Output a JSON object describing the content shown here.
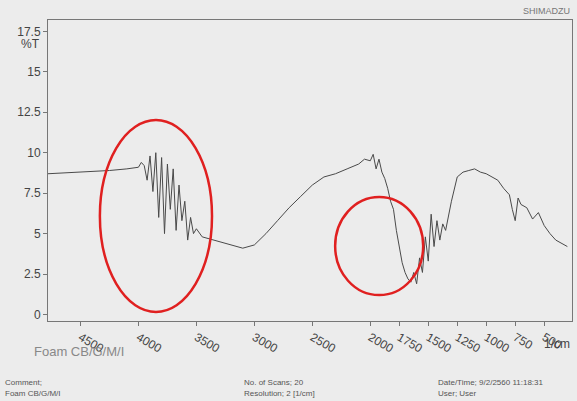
{
  "chart_data": {
    "type": "line",
    "y_label": "%T",
    "x_label": "1/cm",
    "annotations": [
      "SHIMADZU",
      "Foam CB/G/M/I"
    ],
    "color": "#4a4a4a",
    "grid": false,
    "xlim": [
      4780,
      260
    ],
    "xticks": [
      4500,
      4000,
      3500,
      3000,
      2500,
      2000,
      1750,
      1500,
      1250,
      1000,
      750,
      500
    ],
    "ylim": [
      -0.4,
      18.2
    ],
    "yticks": [
      0,
      2.5,
      5,
      7.5,
      10,
      12.5,
      15,
      17.5
    ],
    "x": [
      4780,
      4500,
      4250,
      4100,
      4000,
      3975,
      3950,
      3925,
      3900,
      3875,
      3850,
      3825,
      3800,
      3775,
      3750,
      3725,
      3700,
      3675,
      3650,
      3625,
      3600,
      3575,
      3550,
      3525,
      3500,
      3450,
      3400,
      3300,
      3200,
      3100,
      3000,
      2900,
      2800,
      2700,
      2600,
      2500,
      2400,
      2300,
      2200,
      2100,
      2050,
      2000,
      1975,
      1950,
      1925,
      1900,
      1875,
      1850,
      1825,
      1800,
      1775,
      1750,
      1725,
      1700,
      1675,
      1650,
      1625,
      1600,
      1575,
      1550,
      1525,
      1500,
      1475,
      1450,
      1425,
      1400,
      1375,
      1350,
      1325,
      1300,
      1250,
      1200,
      1150,
      1100,
      1050,
      1000,
      950,
      900,
      850,
      800,
      775,
      750,
      725,
      700,
      650,
      600,
      550,
      500,
      450,
      400,
      300
    ],
    "values": [
      8.7,
      8.8,
      8.9,
      9.0,
      9.1,
      9.4,
      9.2,
      8.3,
      9.8,
      7.6,
      10.0,
      6.0,
      9.7,
      5.0,
      9.3,
      6.5,
      9.0,
      5.2,
      8.0,
      5.8,
      7.0,
      4.6,
      6.0,
      5.0,
      5.3,
      4.8,
      4.7,
      4.5,
      4.3,
      4.1,
      4.3,
      5.0,
      5.8,
      6.6,
      7.3,
      8.0,
      8.5,
      8.7,
      9.0,
      9.3,
      9.6,
      9.5,
      9.9,
      9.0,
      9.6,
      8.8,
      8.4,
      7.8,
      7.0,
      6.5,
      5.2,
      4.2,
      3.2,
      2.6,
      2.2,
      2.0,
      2.6,
      1.9,
      3.5,
      2.6,
      4.8,
      3.3,
      6.2,
      4.2,
      5.8,
      4.6,
      5.6,
      5.2,
      6.2,
      7.0,
      8.5,
      8.8,
      8.9,
      9.0,
      8.8,
      8.7,
      8.5,
      8.3,
      7.8,
      7.4,
      6.5,
      5.8,
      7.2,
      6.8,
      6.6,
      5.9,
      6.3,
      5.5,
      5.0,
      4.6,
      4.2
    ]
  },
  "footer": [
    [
      "Comment;",
      "Foam CB/G/M/I"
    ],
    [
      "No. of Scans; 20",
      "Resolution; 2 [1/cm]"
    ],
    [
      "Date/Time; 9/2/2560 11:18:31",
      "User; User"
    ]
  ]
}
